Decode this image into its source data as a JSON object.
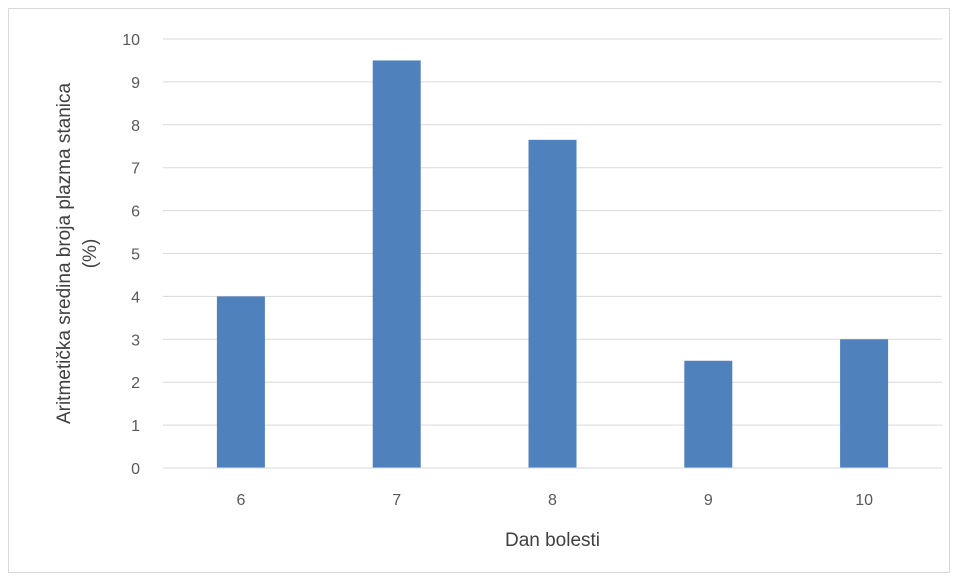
{
  "chart_data": {
    "type": "bar",
    "categories": [
      "6",
      "7",
      "8",
      "9",
      "10"
    ],
    "values": [
      4,
      9.5,
      7.65,
      2.5,
      3
    ],
    "title": "",
    "xlabel": "Dan bolesti",
    "ylabel_lines": [
      "Aritmetička sredina broja plazma stanica",
      "(%)"
    ],
    "ylim": [
      0,
      10
    ],
    "yticks": [
      "0",
      "1",
      "2",
      "3",
      "4",
      "5",
      "6",
      "7",
      "8",
      "9",
      "10"
    ],
    "grid": true,
    "legend": "none",
    "bar_color": "#4f81bd",
    "grid_color": "#d9d9d9"
  }
}
